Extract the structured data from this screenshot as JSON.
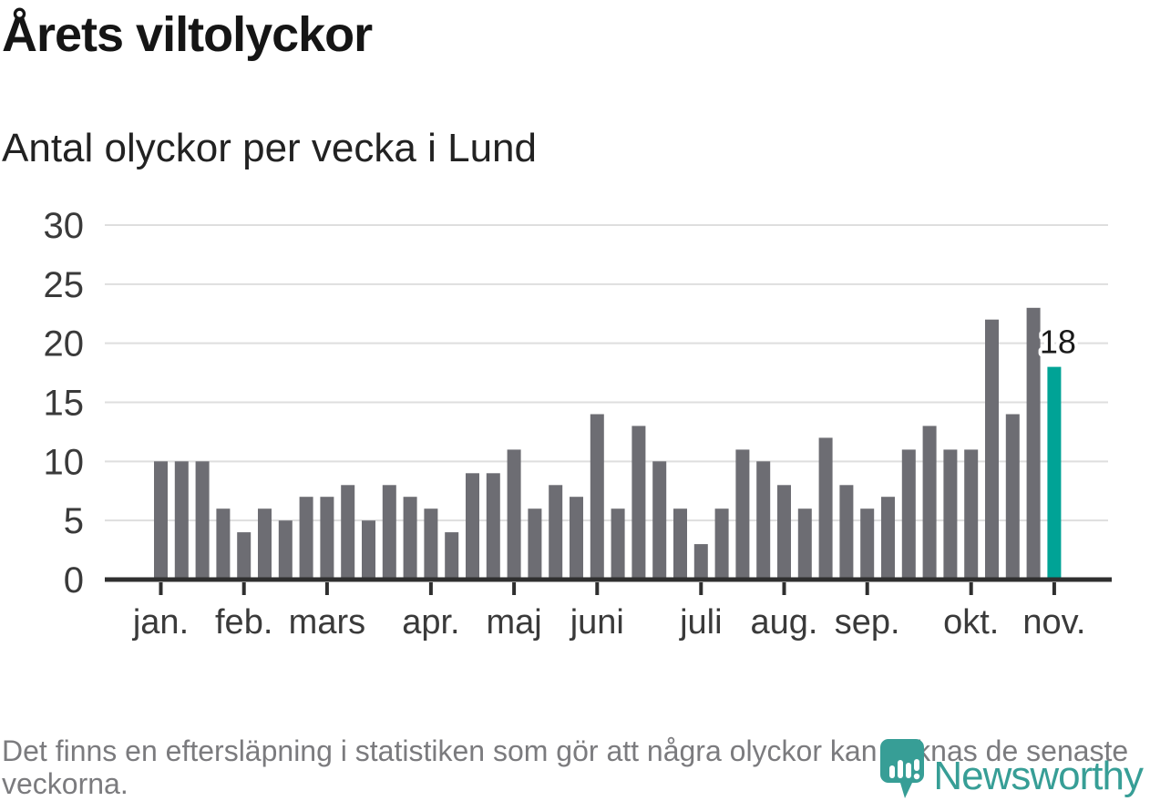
{
  "header": {
    "title": "Årets viltolyckor",
    "subtitle": "Antal olyckor per vecka i Lund"
  },
  "footer": {
    "note": "Det finns en eftersläpning i statistiken som gör att några olyckor kan saknas de senaste veckorna."
  },
  "branding": {
    "name": "Newsworthy",
    "logo_icon": "newsworthy-pin-barchart-icon"
  },
  "colors": {
    "background": "#ffffff",
    "title": "#151515",
    "subtitle": "#222222",
    "bar": "#6d6d73",
    "highlight": "#00a396",
    "grid": "#dedede",
    "axis": "#2f2f2f",
    "tick_label": "#3a3a3a",
    "value_label": "#1a1a1a",
    "value_label_halo": "#ffffff",
    "footnote": "#7b7b7e",
    "brand": "#379e96"
  },
  "chart_data": {
    "type": "bar",
    "title": "Årets viltolyckor",
    "subtitle": "Antal olyckor per vecka i Lund",
    "xlabel": "",
    "ylabel": "",
    "x_unit": "vecka",
    "values": [
      10,
      10,
      10,
      6,
      4,
      6,
      5,
      7,
      7,
      8,
      5,
      8,
      7,
      6,
      4,
      9,
      9,
      11,
      6,
      8,
      7,
      14,
      6,
      13,
      10,
      6,
      3,
      6,
      11,
      10,
      8,
      6,
      12,
      8,
      6,
      7,
      11,
      13,
      11,
      11,
      22,
      14,
      23,
      18
    ],
    "week_count": 44,
    "month_ticks": [
      {
        "label": "jan.",
        "bar_index": 0
      },
      {
        "label": "feb.",
        "bar_index": 4
      },
      {
        "label": "mars",
        "bar_index": 8
      },
      {
        "label": "apr.",
        "bar_index": 13
      },
      {
        "label": "maj",
        "bar_index": 17
      },
      {
        "label": "juni",
        "bar_index": 21
      },
      {
        "label": "juli",
        "bar_index": 26
      },
      {
        "label": "aug.",
        "bar_index": 30
      },
      {
        "label": "sep.",
        "bar_index": 34
      },
      {
        "label": "okt.",
        "bar_index": 39
      },
      {
        "label": "nov.",
        "bar_index": 43
      }
    ],
    "ylim": [
      0,
      30
    ],
    "yticks": [
      0,
      5,
      10,
      15,
      20,
      25,
      30
    ],
    "grid": true,
    "legend": false,
    "bar_color": "#6d6d73",
    "highlight": {
      "bar_index": 43,
      "value": 18,
      "label": "18",
      "color": "#00a396"
    }
  }
}
